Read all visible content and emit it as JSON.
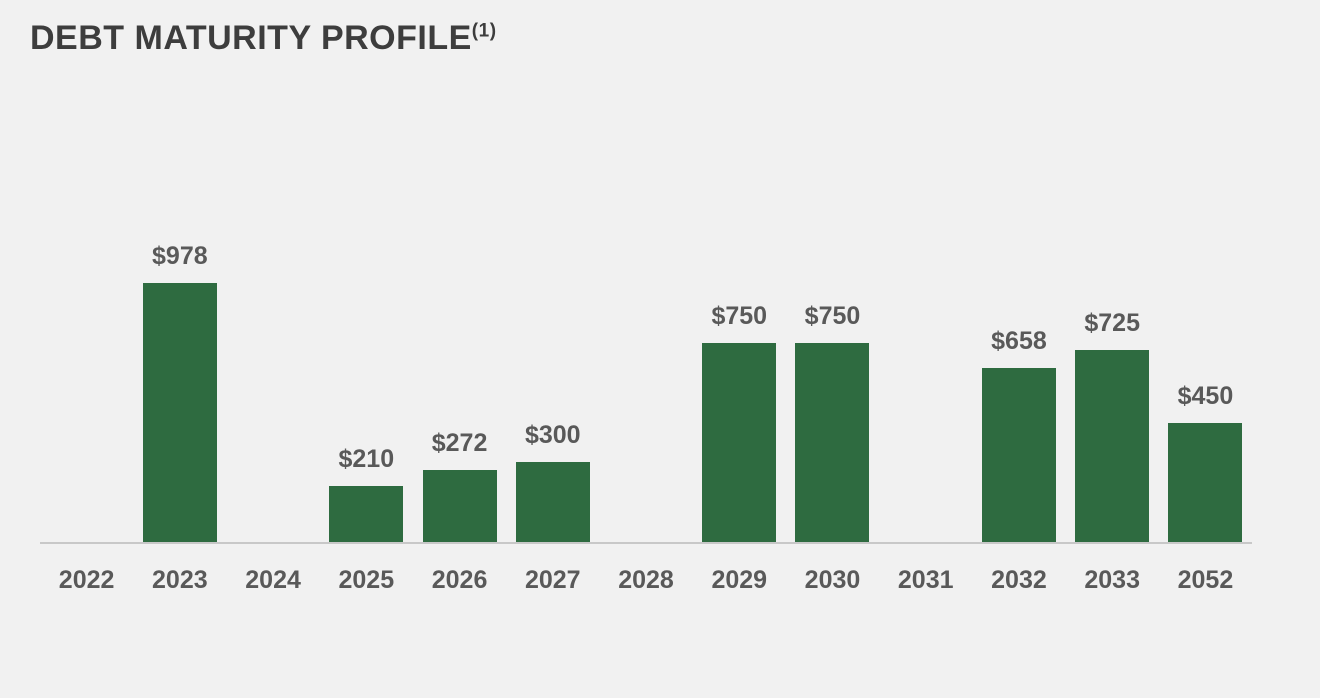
{
  "slide": {
    "title": "DEBT MATURITY PROFILE",
    "title_superscript": "(1)"
  },
  "chart_data": {
    "type": "bar",
    "title": "DEBT MATURITY PROFILE (1)",
    "xlabel": "",
    "ylabel": "",
    "categories": [
      "2022",
      "2023",
      "2024",
      "2025",
      "2026",
      "2027",
      "2028",
      "2029",
      "2030",
      "2031",
      "2032",
      "2033",
      "2052"
    ],
    "values": [
      null,
      978,
      null,
      210,
      272,
      300,
      null,
      750,
      750,
      null,
      658,
      725,
      450
    ],
    "value_labels": [
      "",
      "$978",
      "",
      "$210",
      "$272",
      "$300",
      "",
      "$750",
      "$750",
      "",
      "$658",
      "$725",
      "$450"
    ],
    "ylim": [
      0,
      1100
    ],
    "grid": false,
    "legend_position": "none",
    "bar_color": "#2e6b40",
    "value_label_color": "#595959",
    "tick_label_color": "#595959",
    "title_color": "#3d3d3d",
    "axis_line_color": "#c8c8c8",
    "background_color": "#f1f1f1"
  }
}
